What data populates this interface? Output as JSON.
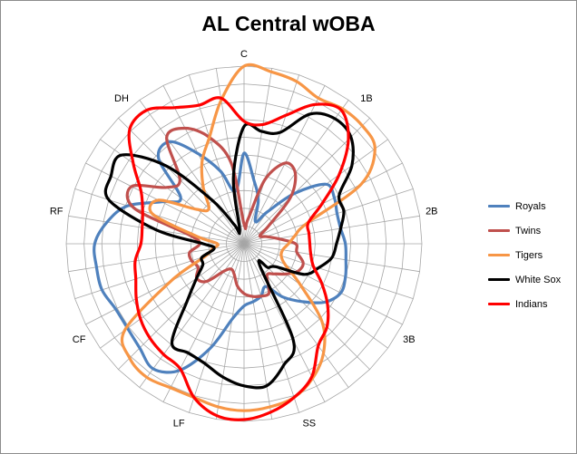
{
  "chart_data": {
    "type": "radar",
    "title": "AL Central wOBA",
    "categories": [
      "C",
      "1B",
      "2B",
      "3B",
      "SS",
      "LF",
      "CF",
      "RF",
      "DH"
    ],
    "rmax": 100,
    "grid": true,
    "legend_position": "right",
    "series": [
      {
        "name": "Royals",
        "color": "#4F81BD",
        "values": [
          [
            0,
            51
          ],
          [
            9,
            36
          ],
          [
            18,
            26
          ],
          [
            27,
            14
          ],
          [
            36,
            22
          ],
          [
            45,
            40
          ],
          [
            54,
            57
          ],
          [
            63,
            57
          ],
          [
            72,
            55
          ],
          [
            81,
            55
          ],
          [
            90,
            57
          ],
          [
            99,
            58
          ],
          [
            108,
            60
          ],
          [
            117,
            61
          ],
          [
            126,
            56
          ],
          [
            135,
            46
          ],
          [
            144,
            37
          ],
          [
            153,
            27
          ],
          [
            162,
            31
          ],
          [
            171,
            33
          ],
          [
            180,
            35
          ],
          [
            189,
            43
          ],
          [
            198,
            62
          ],
          [
            207,
            80
          ],
          [
            216,
            87
          ],
          [
            225,
            83
          ],
          [
            234,
            81
          ],
          [
            243,
            81
          ],
          [
            252,
            84
          ],
          [
            261,
            84
          ],
          [
            270,
            84
          ],
          [
            279,
            78
          ],
          [
            288,
            69
          ],
          [
            297,
            52
          ],
          [
            306,
            44
          ],
          [
            315,
            68
          ],
          [
            324,
            71
          ],
          [
            333,
            57
          ],
          [
            342,
            43
          ],
          [
            351,
            30
          ]
        ]
      },
      {
        "name": "Twins",
        "color": "#C0504D",
        "values": [
          [
            0,
            11
          ],
          [
            9,
            14
          ],
          [
            18,
            38
          ],
          [
            27,
            51
          ],
          [
            36,
            49
          ],
          [
            45,
            37
          ],
          [
            54,
            17
          ],
          [
            63,
            10
          ],
          [
            72,
            13
          ],
          [
            81,
            19
          ],
          [
            90,
            29
          ],
          [
            99,
            30
          ],
          [
            108,
            35
          ],
          [
            117,
            34
          ],
          [
            126,
            29
          ],
          [
            135,
            24
          ],
          [
            144,
            22
          ],
          [
            153,
            31
          ],
          [
            162,
            31
          ],
          [
            171,
            30
          ],
          [
            180,
            28
          ],
          [
            189,
            24
          ],
          [
            198,
            18
          ],
          [
            207,
            16
          ],
          [
            216,
            19
          ],
          [
            225,
            30
          ],
          [
            234,
            33
          ],
          [
            243,
            29
          ],
          [
            252,
            31
          ],
          [
            261,
            31
          ],
          [
            270,
            25
          ],
          [
            279,
            31
          ],
          [
            288,
            65
          ],
          [
            297,
            71
          ],
          [
            306,
            54
          ],
          [
            315,
            51
          ],
          [
            324,
            74
          ],
          [
            333,
            73
          ],
          [
            342,
            63
          ],
          [
            351,
            46
          ]
        ]
      },
      {
        "name": "Tigers",
        "color": "#F79646",
        "values": [
          [
            0,
            100
          ],
          [
            9,
            98
          ],
          [
            18,
            96
          ],
          [
            27,
            92
          ],
          [
            36,
            94
          ],
          [
            45,
            94
          ],
          [
            54,
            91
          ],
          [
            63,
            74
          ],
          [
            72,
            37
          ],
          [
            81,
            29
          ],
          [
            90,
            25
          ],
          [
            99,
            22
          ],
          [
            108,
            22
          ],
          [
            117,
            26
          ],
          [
            126,
            39
          ],
          [
            135,
            62
          ],
          [
            144,
            76
          ],
          [
            153,
            85
          ],
          [
            162,
            91
          ],
          [
            171,
            93
          ],
          [
            180,
            94
          ],
          [
            189,
            93
          ],
          [
            198,
            91
          ],
          [
            207,
            91
          ],
          [
            216,
            93
          ],
          [
            225,
            91
          ],
          [
            234,
            83
          ],
          [
            243,
            46
          ],
          [
            252,
            23
          ],
          [
            261,
            18
          ],
          [
            270,
            15
          ],
          [
            279,
            27
          ],
          [
            288,
            54
          ],
          [
            297,
            54
          ],
          [
            306,
            33
          ],
          [
            315,
            28
          ],
          [
            324,
            39
          ],
          [
            333,
            52
          ],
          [
            342,
            63
          ],
          [
            351,
            82
          ]
        ]
      },
      {
        "name": "White Sox",
        "color": "#000000",
        "values": [
          [
            0,
            66
          ],
          [
            9,
            64
          ],
          [
            18,
            66
          ],
          [
            27,
            82
          ],
          [
            36,
            87
          ],
          [
            45,
            85
          ],
          [
            54,
            75
          ],
          [
            63,
            60
          ],
          [
            72,
            59
          ],
          [
            81,
            55
          ],
          [
            90,
            52
          ],
          [
            99,
            50
          ],
          [
            108,
            44
          ],
          [
            117,
            38
          ],
          [
            126,
            22
          ],
          [
            135,
            19
          ],
          [
            144,
            15
          ],
          [
            153,
            61
          ],
          [
            162,
            72
          ],
          [
            171,
            81
          ],
          [
            180,
            80
          ],
          [
            189,
            76
          ],
          [
            198,
            71
          ],
          [
            207,
            69
          ],
          [
            216,
            69
          ],
          [
            225,
            45
          ],
          [
            234,
            33
          ],
          [
            243,
            26
          ],
          [
            252,
            25
          ],
          [
            261,
            17
          ],
          [
            270,
            23
          ],
          [
            279,
            50
          ],
          [
            288,
            80
          ],
          [
            297,
            84
          ],
          [
            306,
            85
          ],
          [
            315,
            62
          ],
          [
            324,
            30
          ],
          [
            333,
            12
          ],
          [
            342,
            8
          ],
          [
            351,
            38
          ]
        ]
      },
      {
        "name": "Indians",
        "color": "#FF0000",
        "values": [
          [
            0,
            69
          ],
          [
            9,
            68
          ],
          [
            18,
            76
          ],
          [
            27,
            88
          ],
          [
            36,
            93
          ],
          [
            45,
            83
          ],
          [
            54,
            66
          ],
          [
            63,
            49
          ],
          [
            72,
            38
          ],
          [
            81,
            37
          ],
          [
            90,
            37
          ],
          [
            99,
            38
          ],
          [
            108,
            41
          ],
          [
            117,
            49
          ],
          [
            126,
            58
          ],
          [
            135,
            66
          ],
          [
            144,
            71
          ],
          [
            153,
            84
          ],
          [
            162,
            91
          ],
          [
            171,
            96
          ],
          [
            180,
            99
          ],
          [
            189,
            98
          ],
          [
            198,
            91
          ],
          [
            207,
            79
          ],
          [
            216,
            77
          ],
          [
            225,
            75
          ],
          [
            234,
            72
          ],
          [
            243,
            68
          ],
          [
            252,
            64
          ],
          [
            261,
            62
          ],
          [
            270,
            58
          ],
          [
            279,
            58
          ],
          [
            288,
            60
          ],
          [
            297,
            65
          ],
          [
            306,
            77
          ],
          [
            315,
            91
          ],
          [
            324,
            93
          ],
          [
            333,
            86
          ],
          [
            342,
            82
          ],
          [
            351,
            83
          ]
        ]
      }
    ]
  }
}
